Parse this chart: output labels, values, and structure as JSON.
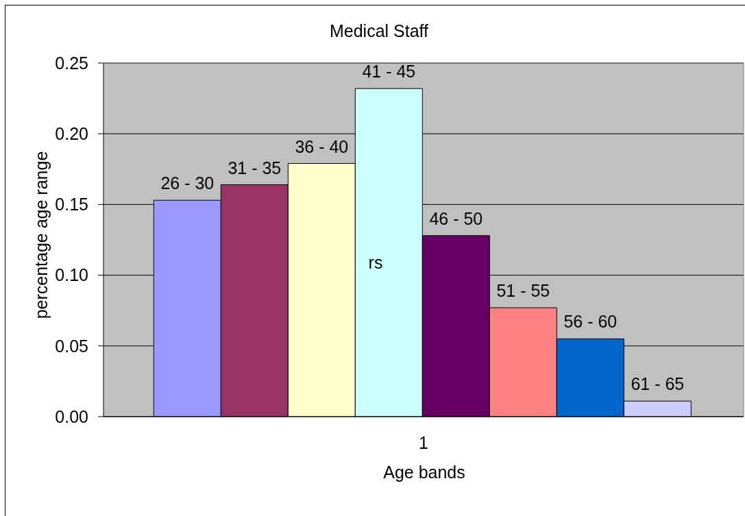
{
  "chart_data": {
    "type": "bar",
    "title": "Medical Staff",
    "xlabel": "Age bands",
    "ylabel": "percentage age range",
    "categories": [
      "1"
    ],
    "series": [
      {
        "name": "26 - 30",
        "color": "#9999ff",
        "values": [
          0.153
        ]
      },
      {
        "name": "31 - 35",
        "color": "#993366",
        "values": [
          0.164
        ]
      },
      {
        "name": "36 - 40",
        "color": "#ffffcc",
        "values": [
          0.179
        ]
      },
      {
        "name": "41 - 45",
        "color": "#ccffff",
        "values": [
          0.232
        ]
      },
      {
        "name": "46 - 50",
        "color": "#660066",
        "values": [
          0.128
        ]
      },
      {
        "name": "51 - 55",
        "color": "#ff8080",
        "values": [
          0.077
        ]
      },
      {
        "name": "56 - 60",
        "color": "#0066cc",
        "values": [
          0.055
        ]
      },
      {
        "name": "61 - 65",
        "color": "#ccccff",
        "values": [
          0.011
        ]
      }
    ],
    "ylim": [
      0,
      0.25
    ],
    "yticks": [
      {
        "value": 0,
        "label": "0.00"
      },
      0.05,
      {
        "value": 0.1,
        "label": "0.10"
      },
      0.15,
      {
        "value": 0.2,
        "label": "0.20"
      },
      0.25
    ],
    "grid": "y",
    "annotations": [
      "rs"
    ]
  }
}
